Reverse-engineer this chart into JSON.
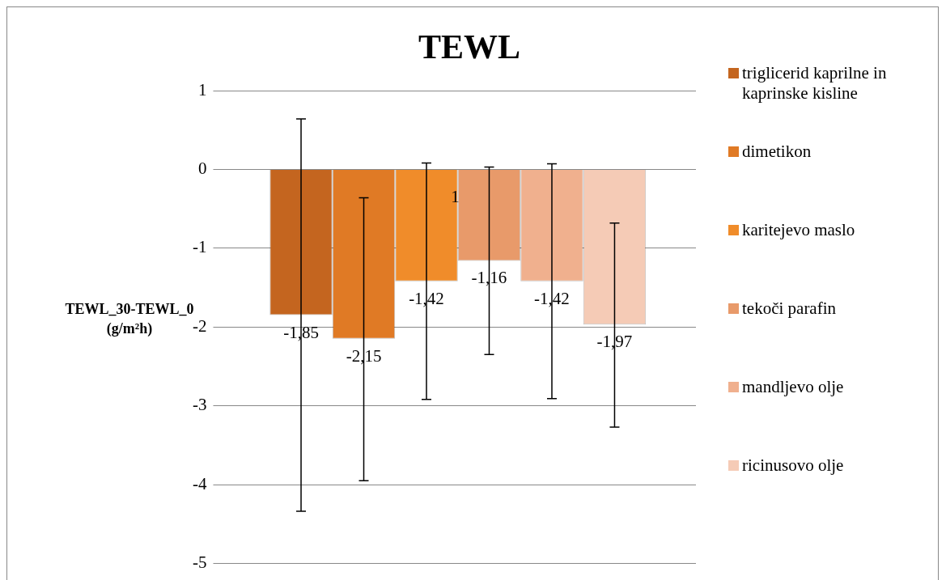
{
  "chart_data": {
    "type": "bar",
    "title": "TEWL",
    "ylabel": "TEWL_30-TEWL_0 (g/m²h)",
    "categories": [
      null
    ],
    "series": [
      {
        "name": "triglicerid kaprilne in kaprinske kisline",
        "color": "#c4651f",
        "values": [
          -1.85
        ],
        "errors": [
          [
            -4.34,
            0.64
          ]
        ],
        "value_labels": [
          "-1,85"
        ]
      },
      {
        "name": "dimetikon",
        "color": "#e07a25",
        "values": [
          -2.15
        ],
        "errors": [
          [
            -3.95,
            -0.36
          ]
        ],
        "value_labels": [
          "-2,15"
        ]
      },
      {
        "name": "karitejevo maslo",
        "color": "#f08c2a",
        "values": [
          -1.42
        ],
        "errors": [
          [
            -2.92,
            0.08
          ]
        ],
        "value_labels": [
          "-1,42"
        ]
      },
      {
        "name": "tekoči parafin",
        "color": "#e89a6a",
        "values": [
          -1.16
        ],
        "errors": [
          [
            -2.35,
            0.03
          ]
        ],
        "value_labels": [
          "-1,16"
        ]
      },
      {
        "name": "mandljevo olje",
        "color": "#f0b08e",
        "values": [
          -1.42
        ],
        "errors": [
          [
            -2.91,
            0.07
          ]
        ],
        "value_labels": [
          "-1,42"
        ]
      },
      {
        "name": "ricinusovo olje",
        "color": "#f5cbb6",
        "values": [
          -1.97
        ],
        "errors": [
          [
            -3.27,
            -0.68
          ]
        ],
        "value_labels": [
          "-1,97"
        ]
      }
    ],
    "annotations": [
      "1"
    ],
    "ylim": [
      -5,
      1
    ],
    "yticks": [
      -5,
      -4,
      -3,
      -2,
      -1,
      0,
      1
    ],
    "grid": "y",
    "legend": "right"
  }
}
